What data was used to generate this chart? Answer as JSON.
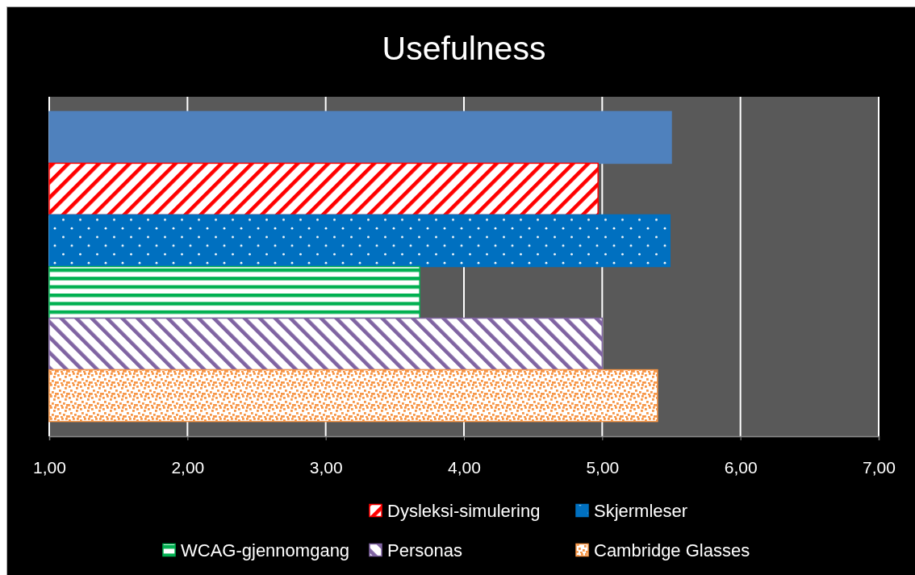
{
  "chart_data": {
    "type": "bar",
    "orientation": "horizontal",
    "title": "Usefulness",
    "categories": [
      null
    ],
    "series": [
      {
        "color": "#4f81bd",
        "values": [
          5.5
        ]
      },
      {
        "name": "Dysleksi-simulering",
        "color": "#ff0000",
        "values": [
          4.97
        ]
      },
      {
        "name": "Skjermleser",
        "color": "#0070c0",
        "values": [
          5.49
        ]
      },
      {
        "name": "WCAG-gjennomgang",
        "color": "#00b050",
        "values": [
          3.68
        ]
      },
      {
        "name": "Personas",
        "color": "#8064a2",
        "values": [
          5.0
        ]
      },
      {
        "name": "Cambridge Glasses",
        "color": "#f79646",
        "values": [
          5.4
        ]
      }
    ],
    "xlim": [
      1,
      7
    ],
    "xticks": [
      {
        "value": 1,
        "label": "1,00"
      },
      {
        "value": 2,
        "label": "2,00"
      },
      {
        "value": 3,
        "label": "3,00"
      },
      {
        "value": 4,
        "label": "4,00"
      },
      {
        "value": 5,
        "label": "5,00"
      },
      {
        "value": 6,
        "label": "6,00"
      },
      {
        "value": 7,
        "label": "7,00"
      }
    ],
    "grid": "x",
    "legend": "bottom"
  }
}
